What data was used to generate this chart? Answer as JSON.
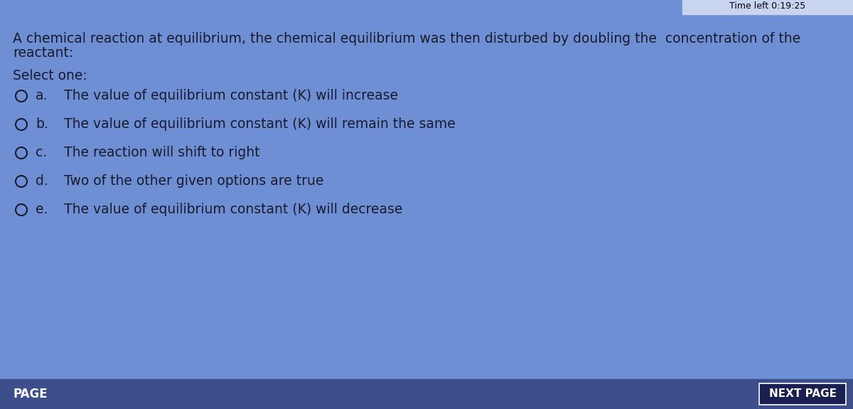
{
  "background_color": "#6e8fd4",
  "question_text_line1": "A chemical reaction at equilibrium, the chemical equilibrium was then disturbed by doubling the  concentration of the",
  "question_text_line2": "reactant:",
  "select_one_label": "Select one:",
  "options": [
    {
      "key": "a.",
      "text": "The value of equilibrium constant (K) will increase"
    },
    {
      "key": "b.",
      "text": "The value of equilibrium constant (K) will remain the same"
    },
    {
      "key": "c.",
      "text": "The reaction will shift to right"
    },
    {
      "key": "d.",
      "text": "Two of the other given options are true"
    },
    {
      "key": "e.",
      "text": "The value of equilibrium constant (K) will decrease"
    }
  ],
  "page_label": "PAGE",
  "next_page_label": "NEXT PAGE",
  "timer_text": "Time left 0:19:25",
  "text_color": "#1a1a2e",
  "next_btn_color": "#1a2050",
  "next_btn_border": "#ffffff",
  "question_font_size": 13.5,
  "option_font_size": 13.5,
  "select_font_size": 13.5,
  "timer_bg": "#c8d4f0",
  "bottom_bg": "#3d4f8a"
}
